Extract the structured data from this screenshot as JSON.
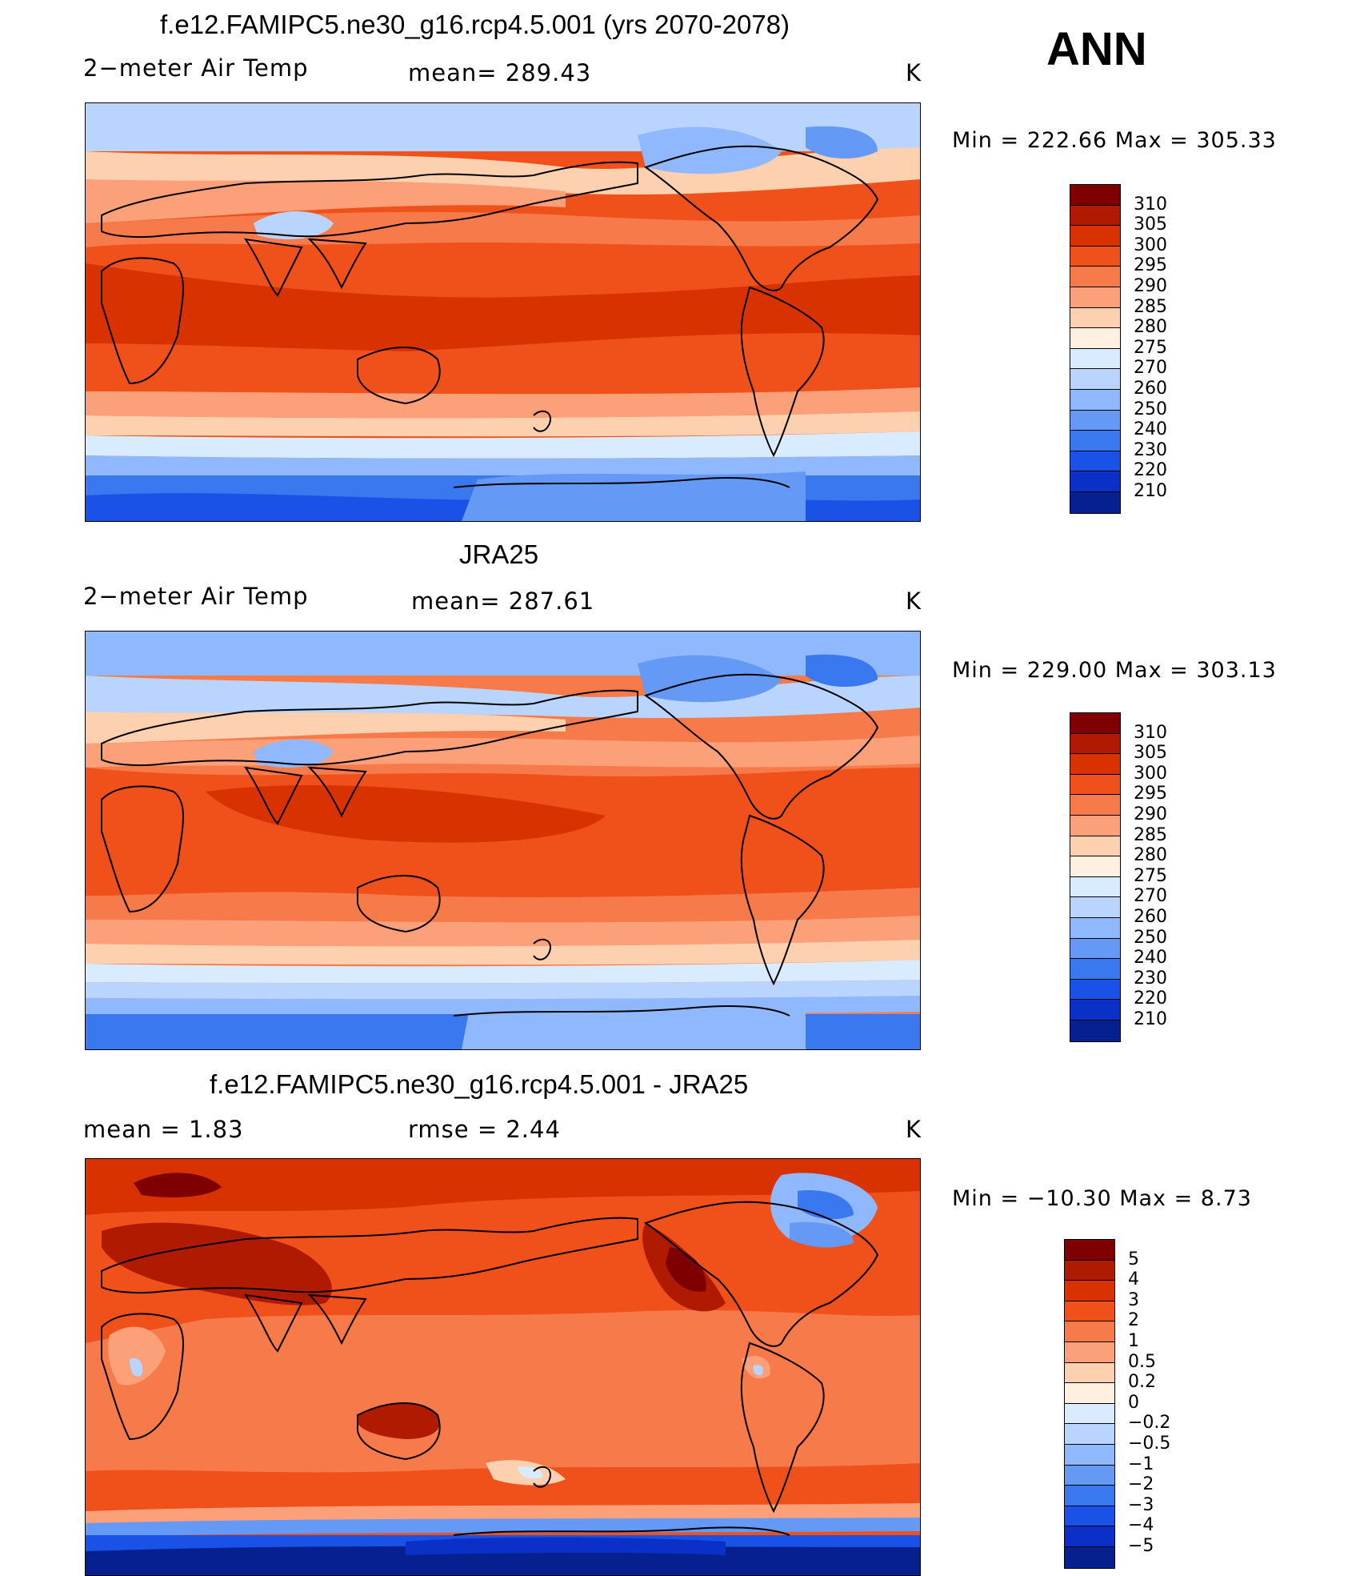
{
  "season": "ANN",
  "panels": [
    {
      "title": "f.e12.FAMIPC5.ne30_g16.rcp4.5.001 (yrs 2070-2078)",
      "left_label": "2−meter Air Temp",
      "center_label": "mean= 289.43",
      "units": "K",
      "minmax": "Min  =  222.66  Max  =  305.33",
      "colorbar": {
        "colors": [
          "#7f0000",
          "#b01a00",
          "#d83200",
          "#f0501a",
          "#f77a4a",
          "#fca07a",
          "#fdd0b0",
          "#fff0e0",
          "#d8ebff",
          "#b8d4ff",
          "#8fb8ff",
          "#6499f5",
          "#3a78f0",
          "#1a52e8",
          "#0a30c8",
          "#06208f"
        ],
        "labels": [
          "310",
          "305",
          "300",
          "295",
          "290",
          "285",
          "280",
          "275",
          "270",
          "260",
          "250",
          "240",
          "230",
          "220",
          "210"
        ]
      },
      "map_kind": "temperature"
    },
    {
      "title": "JRA25",
      "left_label": "2−meter Air Temp",
      "center_label": "mean= 287.61",
      "units": "K",
      "minmax": "Min  =  229.00  Max  =  303.13",
      "colorbar": {
        "colors": [
          "#7f0000",
          "#b01a00",
          "#d83200",
          "#f0501a",
          "#f77a4a",
          "#fca07a",
          "#fdd0b0",
          "#fff0e0",
          "#d8ebff",
          "#b8d4ff",
          "#8fb8ff",
          "#6499f5",
          "#3a78f0",
          "#1a52e8",
          "#0a30c8",
          "#06208f"
        ],
        "labels": [
          "310",
          "305",
          "300",
          "295",
          "290",
          "285",
          "280",
          "275",
          "270",
          "260",
          "250",
          "240",
          "230",
          "220",
          "210"
        ]
      },
      "map_kind": "temperature"
    },
    {
      "title": "f.e12.FAMIPC5.ne30_g16.rcp4.5.001 - JRA25",
      "left_label": "mean =    1.83",
      "center_label": "rmse =    2.44",
      "units": "K",
      "minmax": "Min  =  −10.30  Max  =      8.73",
      "colorbar": {
        "colors": [
          "#7f0000",
          "#b01a00",
          "#d83200",
          "#f0501a",
          "#f77a4a",
          "#fca07a",
          "#fdd0b0",
          "#fff0e0",
          "#d8ebff",
          "#b8d4ff",
          "#8fb8ff",
          "#6499f5",
          "#3a78f0",
          "#1a52e8",
          "#0a30c8",
          "#06208f"
        ],
        "labels": [
          "5",
          "4",
          "3",
          "2",
          "1",
          "0.5",
          "0.2",
          "0",
          "−0.2",
          "−0.5",
          "−1",
          "−2",
          "−3",
          "−4",
          "−5"
        ]
      },
      "map_kind": "difference"
    }
  ]
}
